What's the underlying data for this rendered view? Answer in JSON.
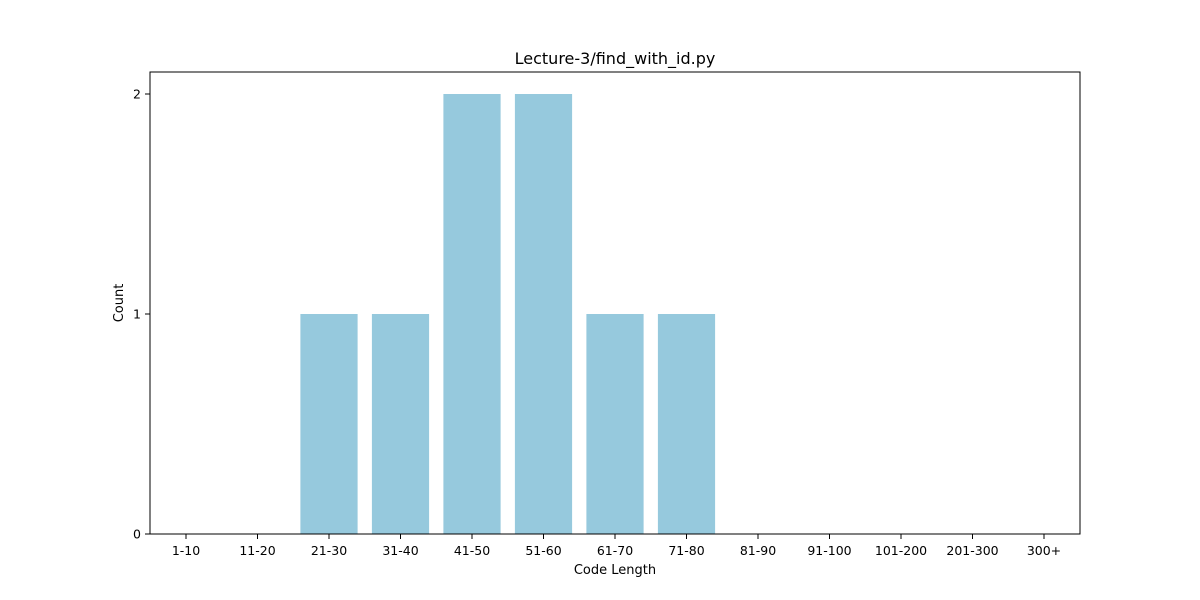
{
  "chart_data": {
    "type": "bar",
    "title": "Lecture-3/find_with_id.py",
    "xlabel": "Code Length",
    "ylabel": "Count",
    "categories": [
      "1-10",
      "11-20",
      "21-30",
      "31-40",
      "41-50",
      "51-60",
      "61-70",
      "71-80",
      "81-90",
      "91-100",
      "101-200",
      "201-300",
      "300+"
    ],
    "values": [
      0,
      0,
      1,
      1,
      2,
      2,
      1,
      1,
      0,
      0,
      0,
      0,
      0
    ],
    "yticks": [
      0,
      1,
      2
    ],
    "ylim": [
      0,
      2.1
    ],
    "grid": false,
    "bar_color": "#96c9dd"
  }
}
